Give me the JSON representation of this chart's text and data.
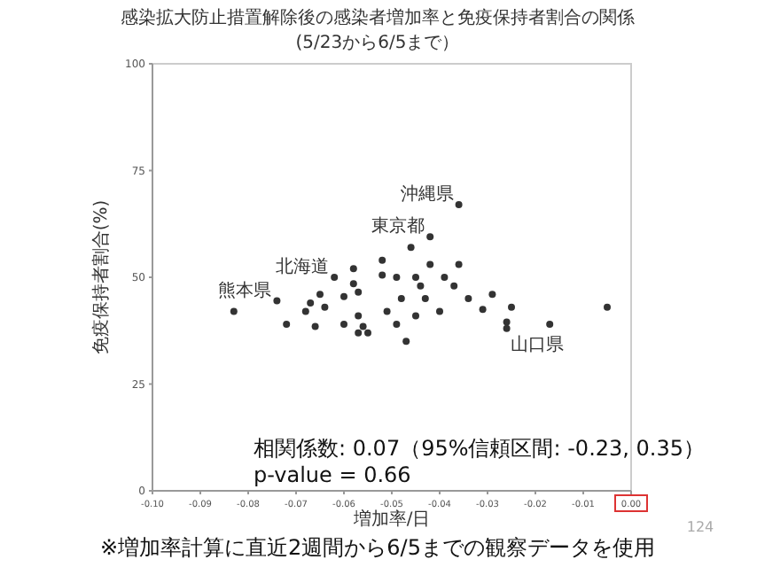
{
  "chart_data": {
    "type": "scatter",
    "title": "感染拡大防止措置解除後の感染者増加率と免疫保持者割合の関係",
    "subtitle": "(5/23から6/5まで）",
    "xlabel": "増加率/日",
    "ylabel": "免疫保持者割合(%)",
    "xlim": [
      -0.1,
      0
    ],
    "ylim": [
      0,
      100
    ],
    "xticks": [
      {
        "value": -0.1,
        "label": "-0.10"
      },
      {
        "value": -0.09,
        "label": "-0.09"
      },
      {
        "value": -0.08,
        "label": "-0.08"
      },
      {
        "value": -0.07,
        "label": "-0.07"
      },
      {
        "value": -0.06,
        "label": "-0.06"
      },
      {
        "value": -0.05,
        "label": "-0.05"
      },
      {
        "value": -0.04,
        "label": "-0.04"
      },
      {
        "value": -0.03,
        "label": "-0.03"
      },
      {
        "value": -0.02,
        "label": "-0.02"
      },
      {
        "value": -0.01,
        "label": "-0.01"
      },
      {
        "value": 0,
        "label": "0.00"
      }
    ],
    "yticks": [
      0,
      25,
      50,
      75,
      100
    ],
    "grid": false,
    "marker": "circle",
    "series": [
      {
        "color": "#333333",
        "x": [
          -0.083,
          -0.074,
          -0.065,
          -0.067,
          -0.068,
          -0.072,
          -0.066,
          -0.062,
          -0.058,
          -0.058,
          -0.06,
          -0.057,
          -0.056,
          -0.06,
          -0.057,
          -0.055,
          -0.064,
          -0.036,
          -0.042,
          -0.046,
          -0.052,
          -0.042,
          -0.036,
          -0.044,
          -0.037,
          -0.048,
          -0.043,
          -0.034,
          -0.029,
          -0.025,
          -0.031,
          -0.04,
          -0.045,
          -0.051,
          -0.049,
          -0.047,
          -0.026,
          -0.026,
          -0.017,
          -0.005,
          -0.045,
          -0.039,
          -0.049,
          -0.052,
          -0.057
        ],
        "values": [
          42,
          44.5,
          46,
          44,
          42,
          39,
          38.5,
          50,
          52,
          48.5,
          45.5,
          41,
          38.5,
          39,
          37,
          37,
          43,
          67,
          59.5,
          57,
          54,
          53,
          53,
          48,
          48,
          45,
          45,
          45,
          46,
          43,
          42.5,
          42,
          41,
          42,
          39,
          35,
          39.5,
          38,
          39,
          43,
          50,
          50,
          50,
          50.5,
          46.5
        ]
      }
    ],
    "annotations": [
      {
        "text": "沖縄県",
        "x": -0.036,
        "y": 67
      },
      {
        "text": "東京都",
        "x": -0.042,
        "y": 59.5
      },
      {
        "text": "北海道",
        "x": -0.062,
        "y": 50
      },
      {
        "text": "熊本県",
        "x": -0.074,
        "y": 44.5
      },
      {
        "text": "山口県",
        "x": -0.026,
        "y": 38
      },
      "相関係数: 0.07（95%信頼区間: -0.23, 0.35）",
      "p-value = 0.66",
      "※増加率計算に直近2週間から6/5までの観察データを使用",
      "124"
    ]
  }
}
